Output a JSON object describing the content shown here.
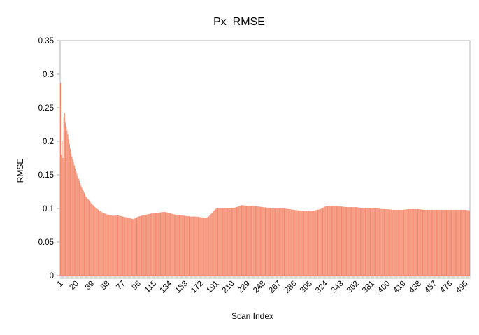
{
  "chart_data": {
    "type": "bar",
    "title": "Px_RMSE",
    "xlabel": "Scan Index",
    "ylabel": "RMSE",
    "ylim": [
      0,
      0.35
    ],
    "yticks": [
      0,
      0.05,
      0.1,
      0.15,
      0.2,
      0.25,
      0.3,
      0.35
    ],
    "ytick_labels": [
      "0",
      "0.05",
      "0.1",
      "0.15",
      "0.2",
      "0.25",
      "0.3",
      "0.35"
    ],
    "x_range": [
      1,
      500
    ],
    "xtick_labels": [
      "1",
      "20",
      "39",
      "58",
      "77",
      "96",
      "115",
      "134",
      "153",
      "172",
      "191",
      "210",
      "229",
      "248",
      "267",
      "286",
      "305",
      "324",
      "343",
      "362",
      "381",
      "400",
      "419",
      "438",
      "457",
      "476",
      "495"
    ],
    "grid": false,
    "legend": "none",
    "bar_color": "#f4876a",
    "series_profile": [
      [
        1,
        0.287
      ],
      [
        2,
        0.18
      ],
      [
        3,
        0.2
      ],
      [
        4,
        0.175
      ],
      [
        5,
        0.235
      ],
      [
        6,
        0.242
      ],
      [
        7,
        0.228
      ],
      [
        10,
        0.21
      ],
      [
        14,
        0.182
      ],
      [
        20,
        0.155
      ],
      [
        26,
        0.134
      ],
      [
        32,
        0.118
      ],
      [
        39,
        0.107
      ],
      [
        46,
        0.099
      ],
      [
        52,
        0.094
      ],
      [
        58,
        0.091
      ],
      [
        65,
        0.089
      ],
      [
        70,
        0.09
      ],
      [
        77,
        0.088
      ],
      [
        84,
        0.086
      ],
      [
        90,
        0.084
      ],
      [
        96,
        0.088
      ],
      [
        103,
        0.09
      ],
      [
        110,
        0.092
      ],
      [
        115,
        0.093
      ],
      [
        122,
        0.094
      ],
      [
        128,
        0.095
      ],
      [
        134,
        0.093
      ],
      [
        140,
        0.091
      ],
      [
        146,
        0.09
      ],
      [
        153,
        0.089
      ],
      [
        160,
        0.088
      ],
      [
        166,
        0.088
      ],
      [
        172,
        0.087
      ],
      [
        178,
        0.086
      ],
      [
        182,
        0.088
      ],
      [
        186,
        0.094
      ],
      [
        191,
        0.1
      ],
      [
        197,
        0.1
      ],
      [
        204,
        0.1
      ],
      [
        210,
        0.1
      ],
      [
        216,
        0.102
      ],
      [
        222,
        0.105
      ],
      [
        229,
        0.104
      ],
      [
        236,
        0.104
      ],
      [
        242,
        0.103
      ],
      [
        248,
        0.102
      ],
      [
        255,
        0.101
      ],
      [
        261,
        0.1
      ],
      [
        267,
        0.1
      ],
      [
        274,
        0.1
      ],
      [
        280,
        0.099
      ],
      [
        286,
        0.098
      ],
      [
        292,
        0.097
      ],
      [
        298,
        0.096
      ],
      [
        305,
        0.096
      ],
      [
        311,
        0.097
      ],
      [
        318,
        0.099
      ],
      [
        324,
        0.103
      ],
      [
        331,
        0.104
      ],
      [
        337,
        0.104
      ],
      [
        343,
        0.103
      ],
      [
        350,
        0.102
      ],
      [
        356,
        0.102
      ],
      [
        362,
        0.102
      ],
      [
        368,
        0.101
      ],
      [
        374,
        0.101
      ],
      [
        381,
        0.1
      ],
      [
        388,
        0.1
      ],
      [
        394,
        0.099
      ],
      [
        400,
        0.099
      ],
      [
        406,
        0.098
      ],
      [
        412,
        0.098
      ],
      [
        419,
        0.098
      ],
      [
        426,
        0.099
      ],
      [
        432,
        0.099
      ],
      [
        438,
        0.099
      ],
      [
        444,
        0.098
      ],
      [
        450,
        0.098
      ],
      [
        457,
        0.098
      ],
      [
        464,
        0.098
      ],
      [
        470,
        0.098
      ],
      [
        476,
        0.098
      ],
      [
        482,
        0.098
      ],
      [
        488,
        0.098
      ],
      [
        495,
        0.098
      ],
      [
        500,
        0.097
      ]
    ]
  }
}
